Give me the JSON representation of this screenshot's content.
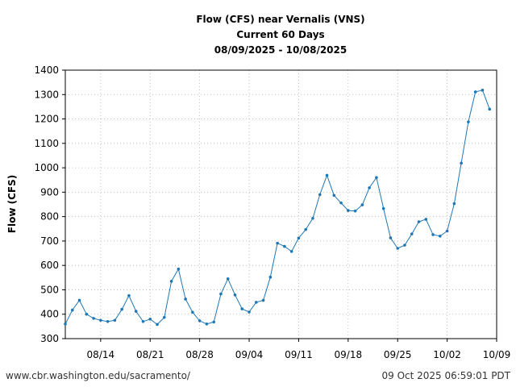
{
  "chart_data": {
    "type": "line",
    "title": [
      "Flow (CFS) near Vernalis (VNS)",
      "Current 60 Days",
      "08/09/2025 - 10/08/2025"
    ],
    "xlabel": "",
    "ylabel": "Flow (CFS)",
    "ylim": [
      300,
      1400
    ],
    "yticks": [
      300,
      400,
      500,
      600,
      700,
      800,
      900,
      1000,
      1100,
      1200,
      1300,
      1400
    ],
    "xlim": [
      "2025-08-09",
      "2025-10-09"
    ],
    "xticks": [
      {
        "date": "2025-08-14",
        "label": "08/14"
      },
      {
        "date": "2025-08-21",
        "label": "08/21"
      },
      {
        "date": "2025-08-28",
        "label": "08/28"
      },
      {
        "date": "2025-09-04",
        "label": "09/04"
      },
      {
        "date": "2025-09-11",
        "label": "09/11"
      },
      {
        "date": "2025-09-18",
        "label": "09/18"
      },
      {
        "date": "2025-09-25",
        "label": "09/25"
      },
      {
        "date": "2025-10-02",
        "label": "10/02"
      },
      {
        "date": "2025-10-09",
        "label": "10/09"
      }
    ],
    "grid": true,
    "color": "#1f77b4",
    "series": [
      {
        "x": [
          "2025-08-09",
          "2025-08-10",
          "2025-08-11",
          "2025-08-12",
          "2025-08-13",
          "2025-08-14",
          "2025-08-15",
          "2025-08-16",
          "2025-08-17",
          "2025-08-18",
          "2025-08-19",
          "2025-08-20",
          "2025-08-21",
          "2025-08-22",
          "2025-08-23",
          "2025-08-24",
          "2025-08-25",
          "2025-08-26",
          "2025-08-27",
          "2025-08-28",
          "2025-08-29",
          "2025-08-30",
          "2025-08-31",
          "2025-09-01",
          "2025-09-02",
          "2025-09-03",
          "2025-09-04",
          "2025-09-05",
          "2025-09-06",
          "2025-09-07",
          "2025-09-08",
          "2025-09-09",
          "2025-09-10",
          "2025-09-11",
          "2025-09-12",
          "2025-09-13",
          "2025-09-14",
          "2025-09-15",
          "2025-09-16",
          "2025-09-17",
          "2025-09-18",
          "2025-09-19",
          "2025-09-20",
          "2025-09-21",
          "2025-09-22",
          "2025-09-23",
          "2025-09-24",
          "2025-09-25",
          "2025-09-26",
          "2025-09-27",
          "2025-09-28",
          "2025-09-29",
          "2025-09-30",
          "2025-10-01",
          "2025-10-02",
          "2025-10-03",
          "2025-10-04",
          "2025-10-05",
          "2025-10-06",
          "2025-10-07",
          "2025-10-08"
        ],
        "values": [
          360,
          417,
          457,
          400,
          383,
          375,
          370,
          375,
          420,
          476,
          412,
          370,
          380,
          358,
          387,
          535,
          585,
          462,
          408,
          373,
          360,
          368,
          483,
          545,
          479,
          422,
          409,
          449,
          457,
          552,
          691,
          678,
          657,
          712,
          747,
          793,
          890,
          969,
          887,
          856,
          825,
          823,
          848,
          918,
          960,
          833,
          713,
          670,
          683,
          729,
          779,
          789,
          726,
          720,
          741,
          853,
          1019,
          1188,
          1311,
          1318,
          1240
        ]
      }
    ]
  },
  "footer": {
    "source": "www.cbr.washington.edu/sacramento/",
    "timestamp": "09 Oct 2025 06:59:01 PDT"
  }
}
